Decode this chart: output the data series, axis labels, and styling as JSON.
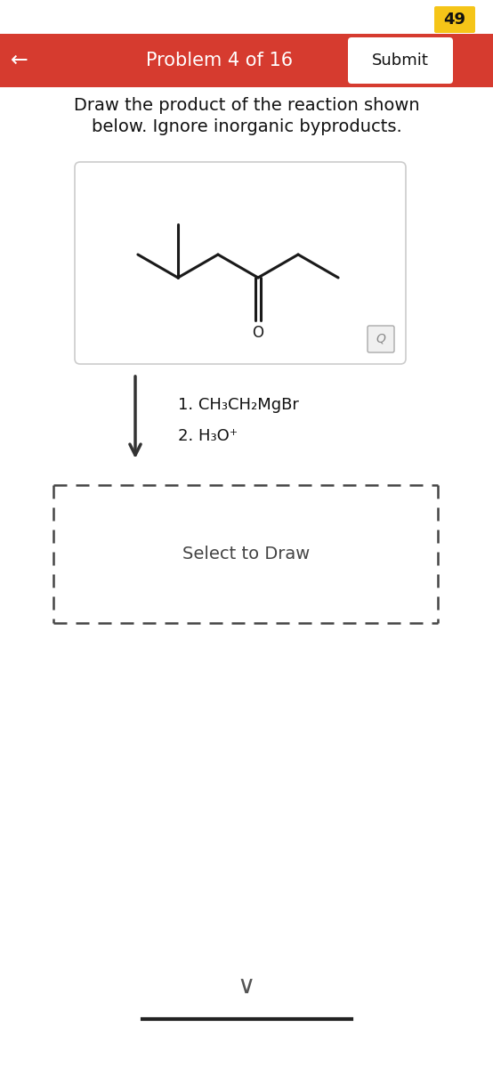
{
  "bg_color": "#ffffff",
  "header_color": "#d63b2f",
  "header_text": "Problem 4 of 16",
  "submit_text": "Submit",
  "back_arrow": "←",
  "badge_number": "49",
  "badge_bg": "#f5c518",
  "instruction_line1": "Draw the product of the reaction shown",
  "instruction_line2": "below. Ignore inorganic byproducts.",
  "reagent_line1": "1. CH₃CH₂MgBr",
  "reagent_line2": "2. H₃O⁺",
  "select_to_draw": "Select to Draw",
  "fig_w": 5.54,
  "fig_h": 12.0,
  "dpi": 100
}
